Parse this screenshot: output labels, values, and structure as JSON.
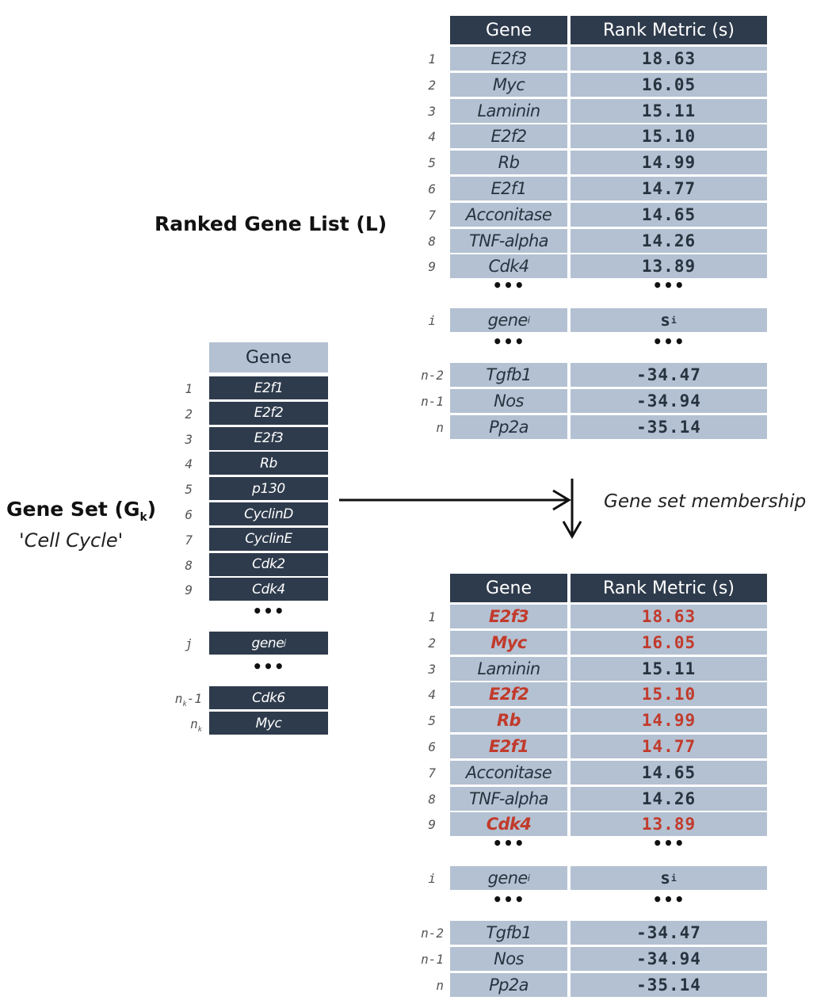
{
  "ranked_list": {
    "title": "Ranked Gene List (L)",
    "header_gene": "Gene",
    "header_metric": "Rank Metric (s)",
    "top_rows": [
      {
        "idx": "1",
        "gene": "E2f3",
        "score": "18.63"
      },
      {
        "idx": "2",
        "gene": "Myc",
        "score": "16.05"
      },
      {
        "idx": "3",
        "gene": "Laminin",
        "score": "15.11"
      },
      {
        "idx": "4",
        "gene": "E2f2",
        "score": "15.10"
      },
      {
        "idx": "5",
        "gene": "Rb",
        "score": "14.99"
      },
      {
        "idx": "6",
        "gene": "E2f1",
        "score": "14.77"
      },
      {
        "idx": "7",
        "gene": "Acconitase",
        "score": "14.65"
      },
      {
        "idx": "8",
        "gene": "TNF-alpha",
        "score": "14.26"
      },
      {
        "idx": "9",
        "gene": "Cdk4",
        "score": "13.89"
      }
    ],
    "ellipsis": "•••",
    "generic_row": {
      "idx": "i",
      "gene": "gene",
      "gene_sub": "i",
      "score": "s",
      "score_sub": "i"
    },
    "bottom_rows": [
      {
        "idx": "n-2",
        "gene": "Tgfb1",
        "score": "-34.47"
      },
      {
        "idx": "n-1",
        "gene": "Nos",
        "score": "-34.94"
      },
      {
        "idx": "n",
        "gene": "Pp2a",
        "score": "-35.14"
      }
    ]
  },
  "gene_set": {
    "title_main": "Gene Set (G",
    "title_sub": "k",
    "title_close": ")",
    "subtitle": "'Cell Cycle'",
    "header": "Gene",
    "rows": [
      {
        "idx": "1",
        "gene": "E2f1"
      },
      {
        "idx": "2",
        "gene": "E2f2"
      },
      {
        "idx": "3",
        "gene": "E2f3"
      },
      {
        "idx": "4",
        "gene": "Rb"
      },
      {
        "idx": "5",
        "gene": "p130"
      },
      {
        "idx": "6",
        "gene": "CyclinD"
      },
      {
        "idx": "7",
        "gene": "CyclinE"
      },
      {
        "idx": "8",
        "gene": "Cdk2"
      },
      {
        "idx": "9",
        "gene": "Cdk4"
      }
    ],
    "ellipsis": "•••",
    "generic_row": {
      "idx": "j",
      "gene": "gene",
      "gene_sub": "j"
    },
    "bottom_rows": [
      {
        "idx": "n",
        "idx_sub": "k",
        "idx_suffix": "-1",
        "gene": "Cdk6"
      },
      {
        "idx": "n",
        "idx_sub": "k",
        "idx_suffix": "",
        "gene": "Myc"
      }
    ]
  },
  "membership": {
    "caption": "Gene set membership",
    "highlight_color": "#c23a2b"
  },
  "annotated_list": {
    "header_gene": "Gene",
    "header_metric": "Rank Metric (s)",
    "top_rows": [
      {
        "idx": "1",
        "gene": "E2f3",
        "score": "18.63",
        "member": true
      },
      {
        "idx": "2",
        "gene": "Myc",
        "score": "16.05",
        "member": true
      },
      {
        "idx": "3",
        "gene": "Laminin",
        "score": "15.11",
        "member": false
      },
      {
        "idx": "4",
        "gene": "E2f2",
        "score": "15.10",
        "member": true
      },
      {
        "idx": "5",
        "gene": "Rb",
        "score": "14.99",
        "member": true
      },
      {
        "idx": "6",
        "gene": "E2f1",
        "score": "14.77",
        "member": true
      },
      {
        "idx": "7",
        "gene": "Acconitase",
        "score": "14.65",
        "member": false
      },
      {
        "idx": "8",
        "gene": "TNF-alpha",
        "score": "14.26",
        "member": false
      },
      {
        "idx": "9",
        "gene": "Cdk4",
        "score": "13.89",
        "member": true
      }
    ],
    "ellipsis": "•••",
    "generic_row": {
      "idx": "i",
      "gene": "gene",
      "gene_sub": "i",
      "score": "s",
      "score_sub": "i"
    },
    "bottom_rows": [
      {
        "idx": "n-2",
        "gene": "Tgfb1",
        "score": "-34.47"
      },
      {
        "idx": "n-1",
        "gene": "Nos",
        "score": "-34.94"
      },
      {
        "idx": "n",
        "gene": "Pp2a",
        "score": "-35.14"
      }
    ]
  }
}
